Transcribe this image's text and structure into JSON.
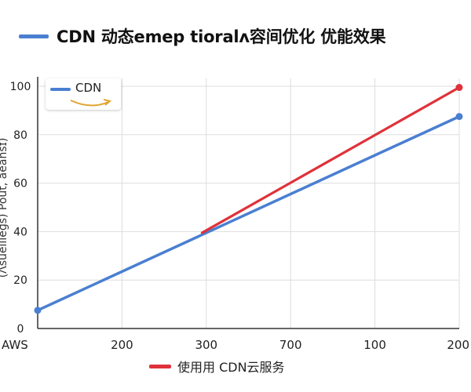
{
  "header": {
    "title": "CDN 动态emep tioralʌ容间优化  优能效果"
  },
  "legend": {
    "inner_label": "CDN",
    "bottom_label": "使用用 CDN云服务"
  },
  "colors": {
    "blue": "#4a7fd1",
    "red": "#e0323a",
    "arrow": "#e1a530",
    "grid": "#dddddd",
    "axis": "#333333"
  },
  "chart_data": {
    "type": "line",
    "ylabel": "(Ʌsuelileɡs) Pout, aeansɪ)",
    "categories": [
      "AWS",
      "200",
      "300",
      "700",
      "100",
      "200"
    ],
    "ylim": [
      0,
      100
    ],
    "yticks": [
      0,
      20,
      40,
      60,
      80,
      100
    ],
    "grid": true,
    "series": [
      {
        "name": "CDN",
        "color": "#4a7fd1",
        "points": [
          {
            "x": 0,
            "y": 7.5
          },
          {
            "x": 5,
            "y": 87.5
          }
        ],
        "markers": [
          0,
          1
        ]
      },
      {
        "name": "使用用 CDN云服务",
        "color": "#e0323a",
        "points": [
          {
            "x": 1.95,
            "y": 39.5
          },
          {
            "x": 5,
            "y": 99.5
          }
        ],
        "markers": [
          1
        ]
      }
    ]
  }
}
